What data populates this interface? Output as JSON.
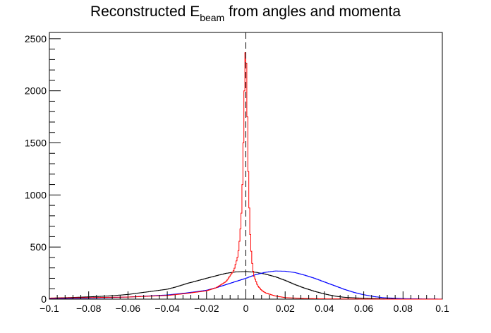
{
  "chart_data": {
    "type": "line",
    "title": {
      "prefix": "Reconstructed E",
      "subscript": "beam",
      "suffix": " from angles and momenta"
    },
    "xlabel": "",
    "ylabel": "",
    "xlim": [
      -0.1,
      0.1
    ],
    "ylim": [
      0,
      2560
    ],
    "x_ticks": [
      -0.1,
      -0.08,
      -0.06,
      -0.04,
      -0.02,
      0,
      0.02,
      0.04,
      0.06,
      0.08,
      0.1
    ],
    "x_tick_labels": [
      "−0.1",
      "−0.08",
      "−0.06",
      "−0.04",
      "−0.02",
      "0",
      "0.02",
      "0.04",
      "0.06",
      "0.08",
      "0.1"
    ],
    "y_ticks": [
      0,
      500,
      1000,
      1500,
      2000,
      2500
    ],
    "y_tick_labels": [
      "0",
      "500",
      "1000",
      "1500",
      "2000",
      "2500"
    ],
    "grid": false,
    "legend": "none",
    "reference_line": {
      "x": 0,
      "style": "dashed",
      "color": "#000000"
    },
    "series": [
      {
        "color": "#000000",
        "x": [
          -0.1,
          -0.09,
          -0.08,
          -0.07,
          -0.06,
          -0.05,
          -0.04,
          -0.035,
          -0.03,
          -0.025,
          -0.02,
          -0.015,
          -0.01,
          -0.005,
          0,
          0.005,
          0.01,
          0.015,
          0.02,
          0.025,
          0.03,
          0.035,
          0.04,
          0.045,
          0.05,
          0.06,
          0.07,
          0.08,
          0.09,
          0.1
        ],
        "y": [
          10,
          15,
          22,
          30,
          45,
          70,
          95,
          120,
          150,
          175,
          200,
          225,
          248,
          262,
          265,
          258,
          240,
          215,
          180,
          140,
          105,
          75,
          50,
          30,
          18,
          8,
          4,
          2,
          1,
          0
        ]
      },
      {
        "color": "#0000ff",
        "x": [
          -0.1,
          -0.08,
          -0.06,
          -0.04,
          -0.03,
          -0.02,
          -0.015,
          -0.01,
          -0.005,
          0,
          0.005,
          0.01,
          0.015,
          0.02,
          0.025,
          0.03,
          0.035,
          0.04,
          0.045,
          0.05,
          0.055,
          0.06,
          0.065,
          0.07,
          0.08,
          0.09,
          0.1
        ],
        "y": [
          5,
          10,
          20,
          40,
          60,
          85,
          110,
          140,
          170,
          200,
          235,
          258,
          270,
          268,
          255,
          230,
          200,
          165,
          130,
          95,
          65,
          42,
          25,
          14,
          5,
          2,
          1
        ]
      },
      {
        "color": "#ff0000",
        "x": [
          -0.1,
          -0.08,
          -0.06,
          -0.04,
          -0.03,
          -0.02,
          -0.015,
          -0.01,
          -0.006,
          -0.004,
          -0.003,
          -0.002,
          -0.001,
          -0.0005,
          0,
          0.0005,
          0.001,
          0.002,
          0.003,
          0.004,
          0.006,
          0.008,
          0.01,
          0.015,
          0.02,
          0.03,
          0.04,
          0.06,
          0.08,
          0.1
        ],
        "y": [
          10,
          15,
          20,
          35,
          55,
          80,
          110,
          170,
          280,
          420,
          600,
          900,
          1700,
          2300,
          2430,
          2100,
          1400,
          700,
          380,
          230,
          130,
          85,
          60,
          30,
          15,
          6,
          3,
          1,
          0,
          0
        ]
      }
    ]
  }
}
